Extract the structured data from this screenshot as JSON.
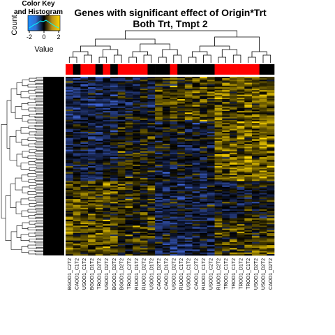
{
  "chart_data": {
    "type": "heatmap",
    "title_lines": [
      "Genes with significant effect of Origin*Trt",
      "Both Trt, Tmpt 2"
    ],
    "color_key": {
      "heading_lines": [
        "Color Key",
        "and Histogram"
      ],
      "x_label": "Value",
      "y_label": "Count",
      "ticks": [
        "-2",
        "0",
        "2"
      ],
      "range": [
        -2.5,
        2.5
      ],
      "palette": [
        "#4169e1",
        "#000000",
        "#ffd700"
      ]
    },
    "columns": [
      "BGOD1_C2T2",
      "CAOD1_C1T2",
      "USOD1_C1T2",
      "BGOD1_D1T2",
      "TROD1_D2T2",
      "USOD1_D2T2",
      "BGOD1_D2T2",
      "BGOD1_D2T2",
      "TROD1_C2T2",
      "RUOD1_D1T2",
      "RUOD1_D2T2",
      "USOD1_D1T2",
      "CAOD1_D2T2",
      "CAOD1_D1T2",
      "USOD1_D2T2",
      "RUOD1_C1T2",
      "USOD1_C1T2",
      "CAOD1_C2T2",
      "RUOD1_C1T2",
      "USOD1_C2T2",
      "RUOD1_C2T2",
      "TROD1_C1T2",
      "TROD1_C1T2",
      "TROD1_D1T2",
      "TROD1_C1T2",
      "USOD1_D2T2",
      "USOD1_D2T2",
      "CAOD1_D2T2"
    ],
    "column_side_colors": [
      "#ff0000",
      "#000000",
      "#ff0000",
      "#ff0000",
      "#000000",
      "#ff0000",
      "#000000",
      "#ff0000",
      "#ff0000",
      "#ff0000",
      "#ff0000",
      "#000000",
      "#000000",
      "#000000",
      "#ff0000",
      "#000000",
      "#000000",
      "#000000",
      "#000000",
      "#000000",
      "#ff0000",
      "#ff0000",
      "#ff0000",
      "#ff0000",
      "#ff0000",
      "#ff0000",
      "#000000",
      "#000000"
    ],
    "row_count": 120,
    "value_range": [
      -2.5,
      2.5
    ]
  }
}
